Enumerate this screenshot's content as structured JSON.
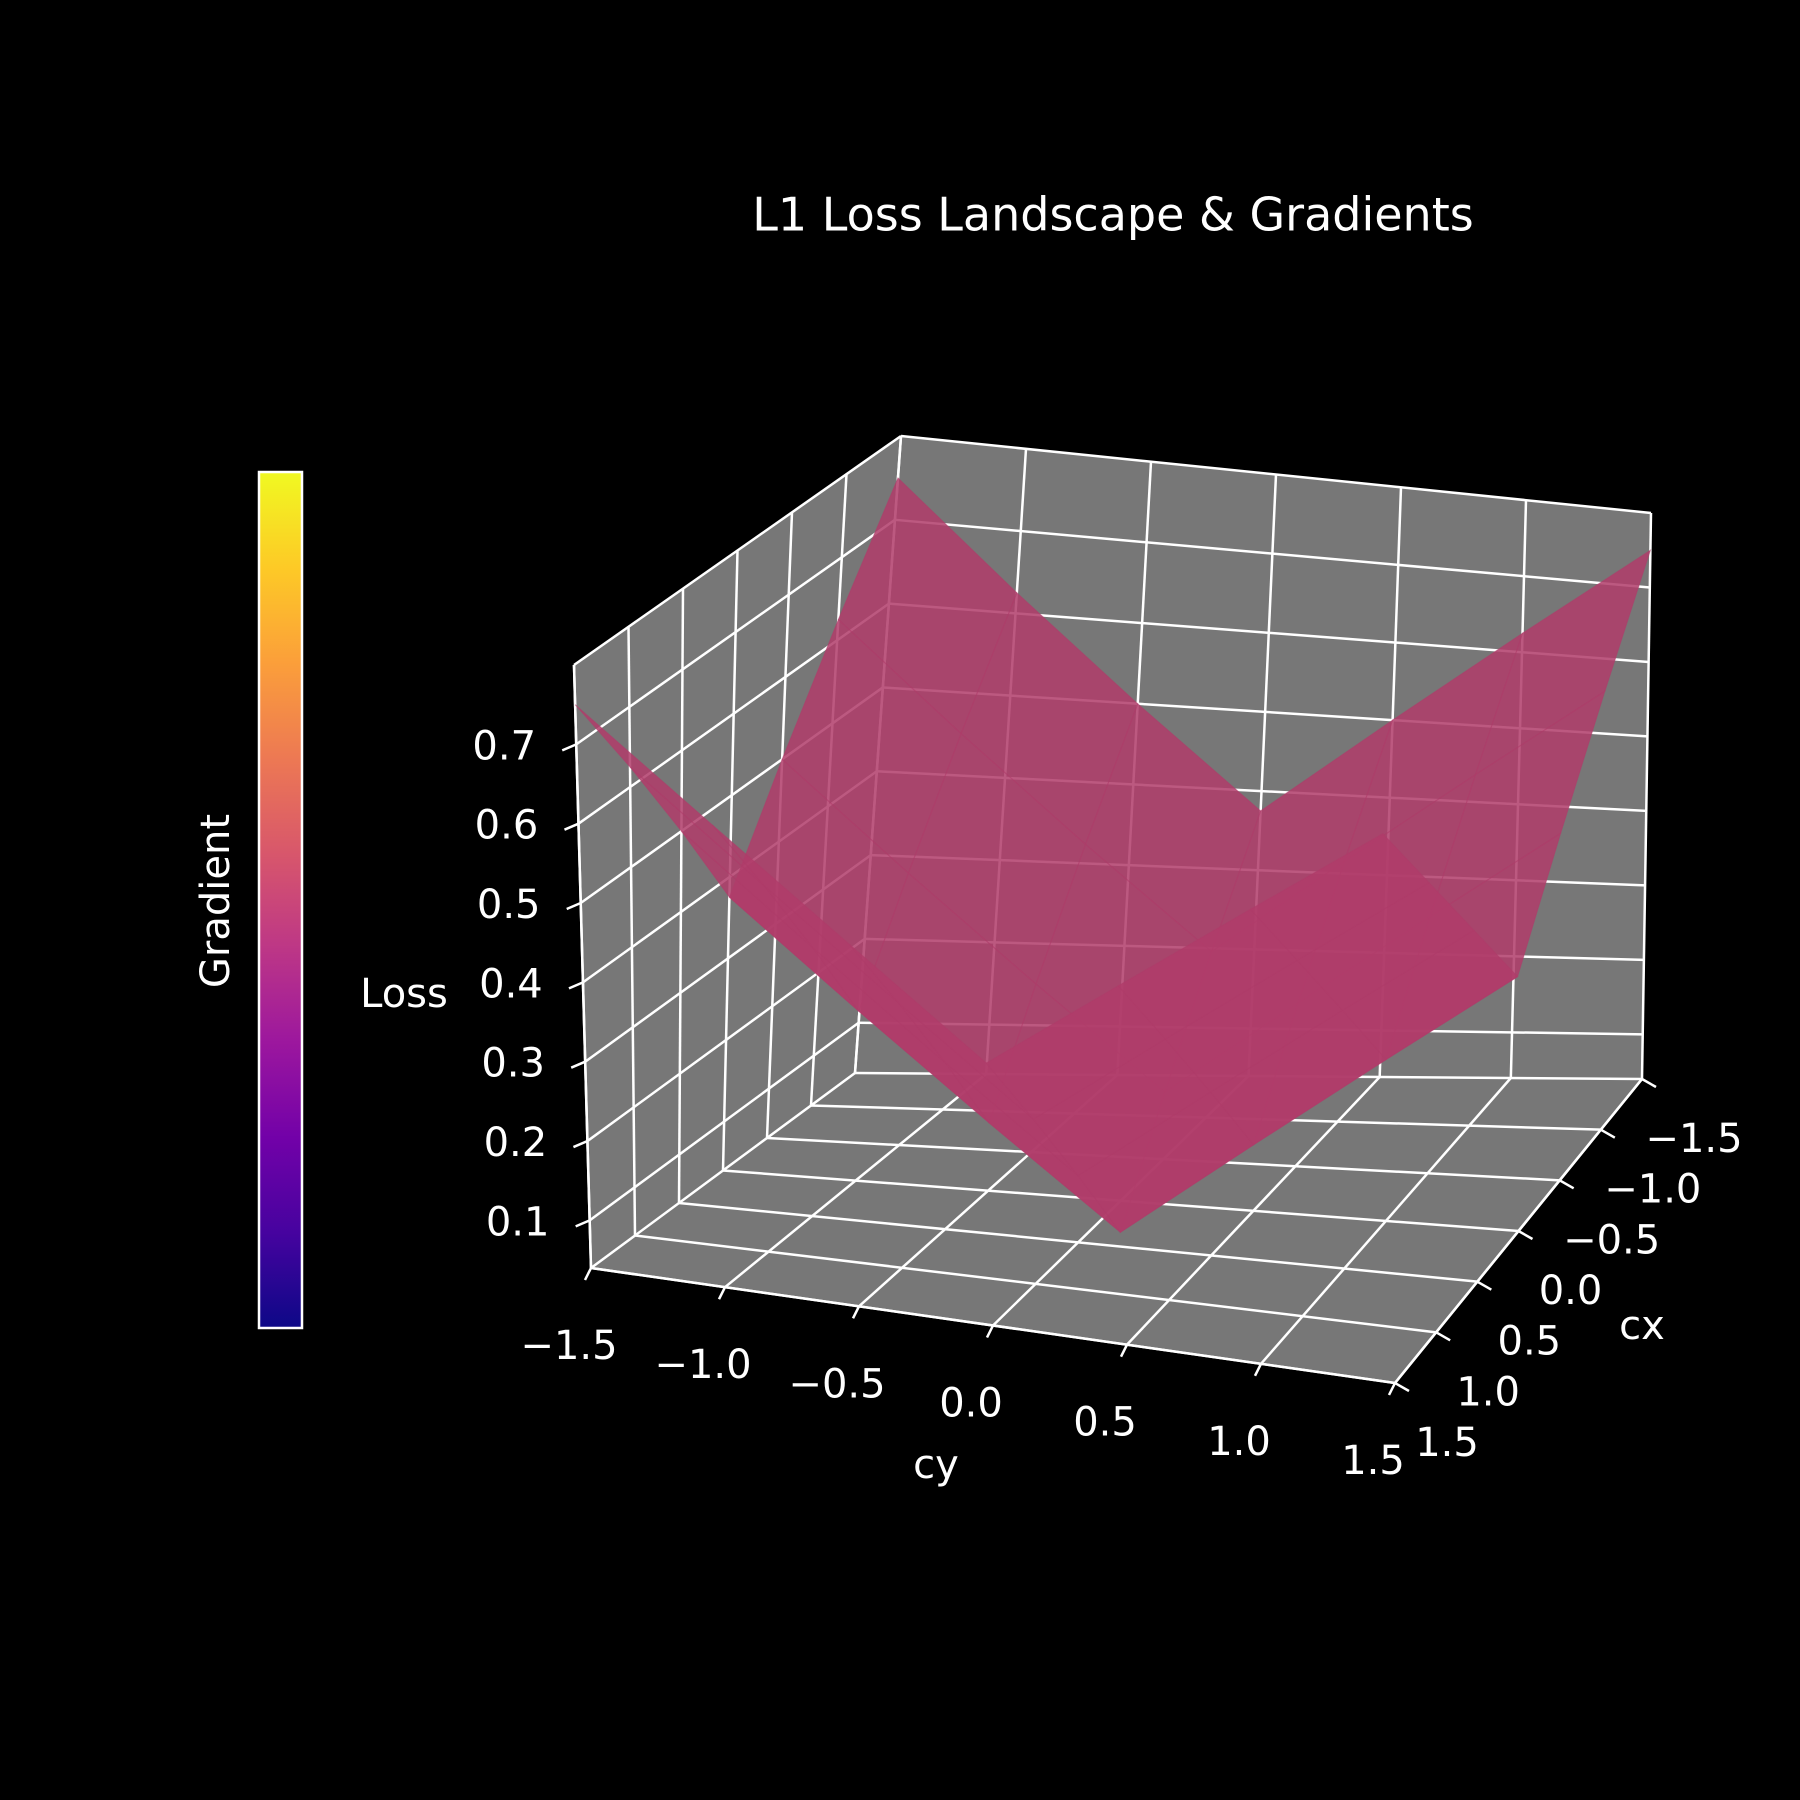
{
  "chart_data": {
    "type": "surface3d",
    "title": "L1 Loss Landscape & Gradients",
    "xlabel": "cx",
    "ylabel": "cy",
    "zlabel": "Loss",
    "x": [
      -1.5,
      -1.0,
      -0.5,
      0.0,
      0.5,
      1.0,
      1.5
    ],
    "y": [
      -1.5,
      -1.0,
      -0.5,
      0.0,
      0.5,
      1.0,
      1.5
    ],
    "z": [
      [
        0.75,
        0.625,
        0.5,
        0.375,
        0.5,
        0.625,
        0.75
      ],
      [
        0.625,
        0.5,
        0.375,
        0.25,
        0.375,
        0.5,
        0.625
      ],
      [
        0.5,
        0.375,
        0.25,
        0.125,
        0.25,
        0.375,
        0.5
      ],
      [
        0.375,
        0.25,
        0.125,
        0.0,
        0.125,
        0.25,
        0.375
      ],
      [
        0.5,
        0.375,
        0.25,
        0.125,
        0.25,
        0.375,
        0.5
      ],
      [
        0.625,
        0.5,
        0.375,
        0.25,
        0.375,
        0.5,
        0.625
      ],
      [
        0.75,
        0.625,
        0.5,
        0.375,
        0.5,
        0.625,
        0.75
      ]
    ],
    "surface_color": "#b03c6a",
    "xlim": [
      -1.5,
      1.5
    ],
    "ylim": [
      -1.5,
      1.5
    ],
    "zlim": [
      0.04,
      0.8
    ],
    "xticks": [
      {
        "value": -1.5,
        "label": "−1.5"
      },
      {
        "value": -1.0,
        "label": "−1.0"
      },
      {
        "value": -0.5,
        "label": "−0.5"
      },
      {
        "value": 0.0,
        "label": "0.0"
      },
      0.5,
      {
        "value": 1.0,
        "label": "1.0"
      },
      1.5
    ],
    "yticks": [
      {
        "value": -1.5,
        "label": "−1.5"
      },
      {
        "value": -1.0,
        "label": "−1.0"
      },
      {
        "value": -0.5,
        "label": "−0.5"
      },
      {
        "value": 0.0,
        "label": "0.0"
      },
      0.5,
      {
        "value": 1.0,
        "label": "1.0"
      },
      1.5
    ],
    "zticks": [
      0.1,
      0.2,
      0.3,
      0.4,
      0.5,
      0.6,
      0.7
    ],
    "grid": true,
    "colorbar": {
      "label": "Gradient",
      "colors": [
        "#0d0887",
        "#46039f",
        "#7201a8",
        "#9c179e",
        "#bd3786",
        "#d8576b",
        "#ed7953",
        "#fb9f3a",
        "#fdca26",
        "#f0f921"
      ]
    }
  }
}
